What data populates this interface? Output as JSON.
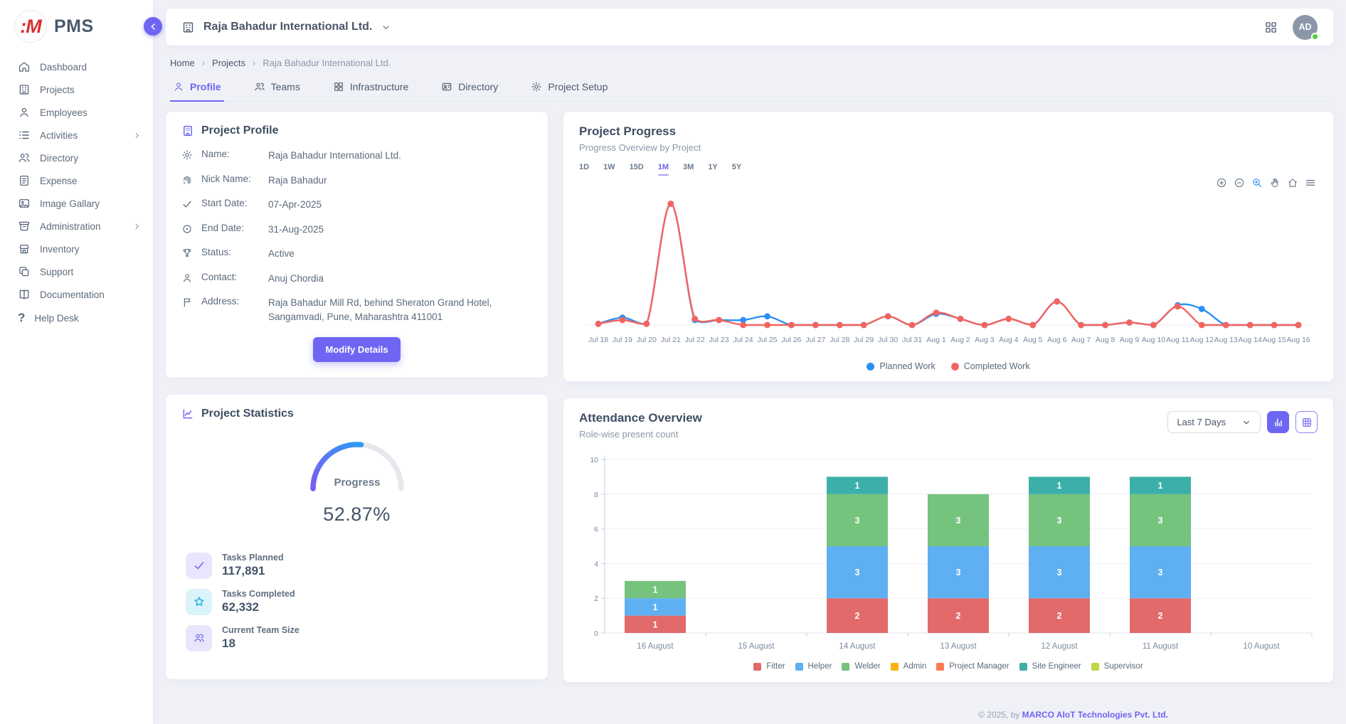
{
  "app": {
    "name": "PMS"
  },
  "sidebar": {
    "items": [
      {
        "label": "Dashboard",
        "icon": "home"
      },
      {
        "label": "Projects",
        "icon": "building"
      },
      {
        "label": "Employees",
        "icon": "user"
      },
      {
        "label": "Activities",
        "icon": "list",
        "chevron": true
      },
      {
        "label": "Directory",
        "icon": "users"
      },
      {
        "label": "Expense",
        "icon": "receipt"
      },
      {
        "label": "Image Gallary",
        "icon": "image"
      },
      {
        "label": "Administration",
        "icon": "archive",
        "chevron": true
      },
      {
        "label": "Inventory",
        "icon": "store"
      },
      {
        "label": "Support",
        "icon": "copy"
      },
      {
        "label": "Documentation",
        "icon": "book"
      },
      {
        "label": "Help Desk",
        "icon": "help"
      }
    ]
  },
  "header": {
    "company": "Raja Bahadur International Ltd.",
    "avatar_initials": "AD"
  },
  "breadcrumb": {
    "items": [
      "Home",
      "Projects",
      "Raja Bahadur International Ltd."
    ]
  },
  "tabs": {
    "items": [
      {
        "label": "Profile",
        "icon": "user",
        "active": true
      },
      {
        "label": "Teams",
        "icon": "users",
        "active": false
      },
      {
        "label": "Infrastructure",
        "icon": "grid",
        "active": false
      },
      {
        "label": "Directory",
        "icon": "idcard",
        "active": false
      },
      {
        "label": "Project Setup",
        "icon": "gear",
        "active": false
      }
    ]
  },
  "profile_card": {
    "title": "Project Profile",
    "fields": [
      {
        "icon": "gear",
        "label": "Name:",
        "value": "Raja Bahadur International Ltd."
      },
      {
        "icon": "fingerprint",
        "label": "Nick Name:",
        "value": "Raja Bahadur"
      },
      {
        "icon": "check",
        "label": "Start Date:",
        "value": "07-Apr-2025"
      },
      {
        "icon": "target",
        "label": "End Date:",
        "value": "31-Aug-2025"
      },
      {
        "icon": "trophy",
        "label": "Status:",
        "value": "Active"
      },
      {
        "icon": "user",
        "label": "Contact:",
        "value": "Anuj Chordia"
      },
      {
        "icon": "flag",
        "label": "Address:",
        "value": "Raja Bahadur Mill Rd, behind Sheraton Grand Hotel, Sangamvadi, Pune, Maharashtra 411001"
      }
    ],
    "button_label": "Modify Details"
  },
  "stats_card": {
    "title": "Project Statistics",
    "gauge": {
      "label": "Progress",
      "value_text": "52.87%",
      "percent": 52.87
    },
    "stats": [
      {
        "icon": "check",
        "label": "Tasks Planned",
        "value": "117,891",
        "bg": "#e8e5fc",
        "color": "#6e66f3"
      },
      {
        "icon": "star",
        "label": "Tasks Completed",
        "value": "62,332",
        "bg": "#dbf3fa",
        "color": "#27b4dc"
      },
      {
        "icon": "team",
        "label": "Current Team Size",
        "value": "18",
        "bg": "#e8e5fc",
        "color": "#6e66f3"
      }
    ]
  },
  "progress_card": {
    "title": "Project Progress",
    "subtitle": "Progress Overview by Project",
    "ranges": [
      "1D",
      "1W",
      "15D",
      "1M",
      "3M",
      "1Y",
      "5Y"
    ],
    "active_range": "1M",
    "toolbar_icons": [
      "zoom-in",
      "zoom-out",
      "zoom-select",
      "pan",
      "home-reset",
      "menu"
    ]
  },
  "attendance_card": {
    "title": "Attendance Overview",
    "subtitle": "Role-wise present count",
    "range_value": "Last 7 Days"
  },
  "footer": {
    "prefix": "© 2025, by ",
    "company": "MARCO AIoT Technologies Pvt. Ltd."
  },
  "colors": {
    "accent": "#6e66f3",
    "planned": "#2b90f5",
    "completed": "#f4645f"
  },
  "chart_data": [
    {
      "type": "line",
      "title": "Project Progress",
      "x": [
        "Jul 18",
        "Jul 19",
        "Jul 20",
        "Jul 21",
        "Jul 22",
        "Jul 23",
        "Jul 24",
        "Jul 25",
        "Jul 26",
        "Jul 27",
        "Jul 28",
        "Jul 29",
        "Jul 30",
        "Jul 31",
        "Aug 1",
        "Aug 2",
        "Aug 3",
        "Aug 4",
        "Aug 5",
        "Aug 6",
        "Aug 7",
        "Aug 8",
        "Aug 9",
        "Aug 10",
        "Aug 11",
        "Aug 12",
        "Aug 13",
        "Aug 14",
        "Aug 15",
        "Aug 16"
      ],
      "series": [
        {
          "name": "Planned Work",
          "color": "#2b90f5",
          "values": [
            1,
            6,
            1,
            98,
            4,
            4,
            4,
            7,
            0,
            0,
            0,
            0,
            7,
            0,
            9,
            5,
            0,
            5,
            0,
            19,
            0,
            0,
            2,
            0,
            16,
            13,
            0,
            0,
            0,
            0
          ]
        },
        {
          "name": "Completed Work",
          "color": "#f4645f",
          "values": [
            1,
            4,
            1,
            98,
            5,
            4,
            0,
            0,
            0,
            0,
            0,
            0,
            7,
            0,
            10,
            5,
            0,
            5,
            0,
            19,
            0,
            0,
            2,
            0,
            15,
            0,
            0,
            0,
            0,
            0
          ]
        }
      ],
      "ylim": [
        0,
        100
      ],
      "grid": false,
      "legend_position": "bottom"
    },
    {
      "type": "bar",
      "stacked": true,
      "title": "Attendance Overview",
      "categories": [
        "16 August",
        "15 August",
        "14 August",
        "13 August",
        "12 August",
        "11 August",
        "10 August"
      ],
      "series": [
        {
          "name": "Fitter",
          "color": "#e26a6a",
          "values": [
            1,
            0,
            2,
            2,
            2,
            2,
            0
          ]
        },
        {
          "name": "Helper",
          "color": "#5fb0f2",
          "values": [
            1,
            0,
            3,
            3,
            3,
            3,
            0
          ]
        },
        {
          "name": "Welder",
          "color": "#76c37e",
          "values": [
            1,
            0,
            3,
            3,
            3,
            3,
            0
          ]
        },
        {
          "name": "Admin",
          "color": "#f9b115",
          "values": [
            0,
            0,
            0,
            0,
            0,
            0,
            0
          ]
        },
        {
          "name": "Project Manager",
          "color": "#fb7a56",
          "values": [
            0,
            0,
            0,
            0,
            0,
            0,
            0
          ]
        },
        {
          "name": "Site Engineer",
          "color": "#3cafa9",
          "values": [
            0,
            0,
            1,
            0,
            1,
            1,
            0
          ]
        },
        {
          "name": "Supervisor",
          "color": "#c3d643",
          "values": [
            0,
            0,
            0,
            0,
            0,
            0,
            0
          ]
        }
      ],
      "ylim": [
        0,
        10
      ],
      "yticks": [
        0,
        2,
        4,
        6,
        8,
        10
      ],
      "grid": true,
      "legend_position": "bottom"
    }
  ]
}
